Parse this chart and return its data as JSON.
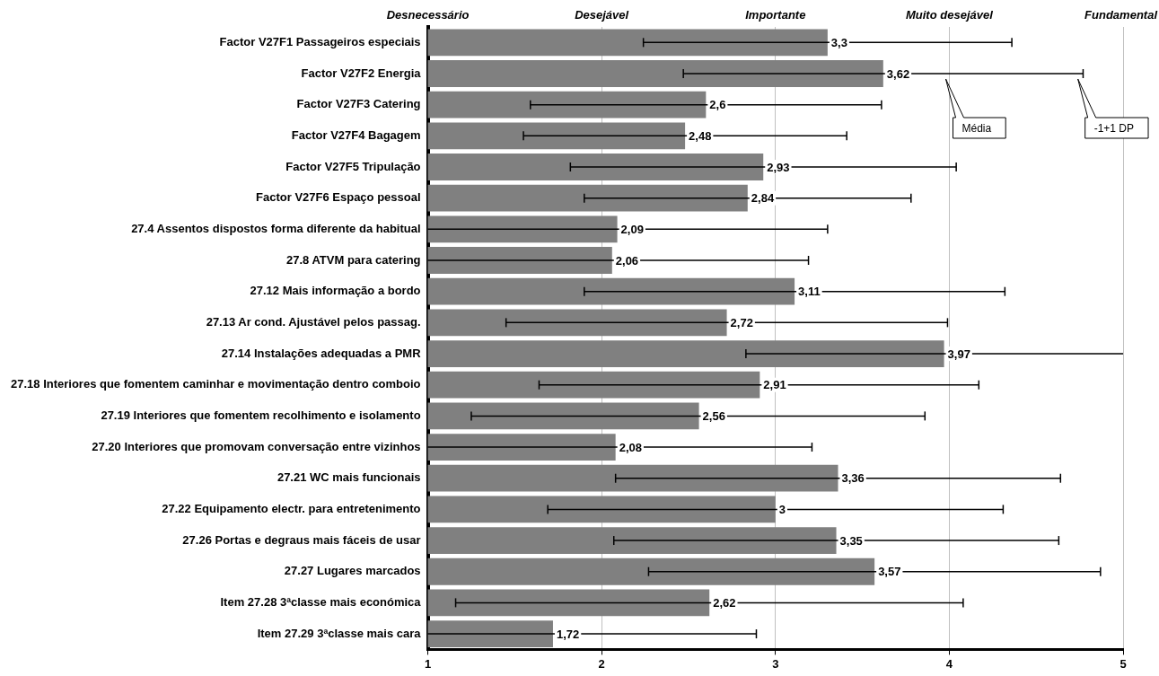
{
  "chart_data": {
    "type": "bar",
    "orientation": "horizontal",
    "categories": [
      "Factor V27F1 Passageiros especiais",
      "Factor V27F2 Energia",
      "Factor V27F3 Catering",
      "Factor V27F4 Bagagem",
      "Factor V27F5 Tripulação",
      "Factor V27F6 Espaço pessoal",
      "27.4 Assentos dispostos forma diferente da habitual",
      "27.8 ATVM para catering",
      "27.12 Mais informação a bordo",
      "27.13 Ar cond. Ajustável pelos passag.",
      "27.14 Instalações adequadas a PMR",
      "27.18 Interiores que fomentem caminhar e movimentação dentro comboio",
      "27.19 Interiores que fomentem recolhimento e isolamento",
      "27.20 Interiores que promovam conversação entre vizinhos",
      "27.21 WC mais funcionais",
      "27.22 Equipamento electr. para entretenimento",
      "27.26 Portas e degraus mais fáceis de usar",
      "27.27 Lugares marcados",
      "Item 27.28 3ªclasse mais económica",
      "Item 27.29 3ªclasse mais cara"
    ],
    "values": [
      3.3,
      3.62,
      2.6,
      2.48,
      2.93,
      2.84,
      2.09,
      2.06,
      3.11,
      2.72,
      3.97,
      2.91,
      2.56,
      2.08,
      3.36,
      3,
      3.35,
      3.57,
      2.62,
      1.72
    ],
    "value_labels": [
      "3,3",
      "3,62",
      "2,6",
      "2,48",
      "2,93",
      "2,84",
      "2,09",
      "2,06",
      "3,11",
      "2,72",
      "3,97",
      "2,91",
      "2,56",
      "2,08",
      "3,36",
      "3",
      "3,35",
      "3,57",
      "2,62",
      "1,72"
    ],
    "errors": [
      [
        2.24,
        4.36
      ],
      [
        2.47,
        4.77
      ],
      [
        1.59,
        3.61
      ],
      [
        1.55,
        3.41
      ],
      [
        1.82,
        4.04
      ],
      [
        1.9,
        3.78
      ],
      [
        1,
        3.3
      ],
      [
        1,
        3.19
      ],
      [
        1.9,
        4.32
      ],
      [
        1.45,
        3.99
      ],
      [
        2.83,
        5
      ],
      [
        1.64,
        4.17
      ],
      [
        1.25,
        3.86
      ],
      [
        1,
        3.21
      ],
      [
        2.08,
        4.64
      ],
      [
        1.69,
        4.31
      ],
      [
        2.07,
        4.63
      ],
      [
        2.27,
        4.87
      ],
      [
        1.16,
        4.08
      ],
      [
        1,
        2.89
      ]
    ],
    "color": "#808080",
    "xlim": [
      1,
      5
    ],
    "xticks": [
      1,
      2,
      3,
      4,
      5
    ],
    "grid": "x",
    "legend": false,
    "annotations": [
      "Desnecessário",
      "Desejável",
      "Importante",
      "Muito desejável",
      "Fundamental",
      "Média",
      "-1+1 DP"
    ]
  }
}
